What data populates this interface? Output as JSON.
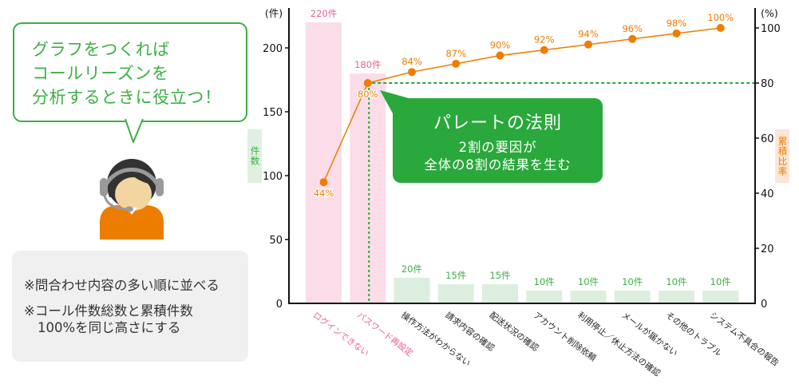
{
  "bubble": {
    "lines": [
      "グラフをつくれば",
      "コールリーズンを",
      "分析するときに役立つ！"
    ]
  },
  "note": {
    "line1": "※問合わせ内容の多い順に並べる",
    "line2": "※コール件数総数と累積件数",
    "line3": "100%を同じ高さにする"
  },
  "callout": {
    "title": "パレートの法則",
    "line1": "2割の要因が",
    "line2": "全体の8割の結果を生む"
  },
  "colors": {
    "green": "#3cb043",
    "callout_green": "#2aa83c",
    "orange": "#ee7d00",
    "pink_text": "#e8609a",
    "pink_bar": "#fbdde9",
    "green_bar": "#dcefdf",
    "axis": "#111111",
    "label_dark": "#222222"
  },
  "chart_data": {
    "type": "bar",
    "subtype": "pareto",
    "title": "",
    "categories": [
      "ログインできない",
      "パスワード再設定",
      "操作方法がわからない",
      "請求内容の確認",
      "配送状況の確認",
      "アカウント削除依頼",
      "利用停止／休止方法の確認",
      "メールが届かない",
      "その他のトラブル",
      "システム不具合の報告"
    ],
    "highlighted_categories": [
      0,
      1
    ],
    "series": [
      {
        "name": "件数",
        "type": "bar",
        "axis": "left",
        "values": [
          220,
          180,
          20,
          15,
          15,
          10,
          10,
          10,
          10,
          10
        ],
        "value_labels": [
          "220件",
          "180件",
          "20件",
          "15件",
          "15件",
          "10件",
          "10件",
          "10件",
          "10件",
          "10件"
        ]
      },
      {
        "name": "累積比率",
        "type": "line",
        "axis": "right",
        "values": [
          44,
          80,
          84,
          87,
          90,
          92,
          94,
          96,
          98,
          100
        ],
        "value_labels": [
          "44%",
          "80%",
          "84%",
          "87%",
          "90%",
          "92%",
          "94%",
          "96%",
          "98%",
          "100%"
        ]
      }
    ],
    "xlabel": "",
    "ylabel": "件数",
    "y_unit": "(件)",
    "yticks": [
      0,
      50,
      100,
      150,
      200
    ],
    "ylim": [
      0,
      230
    ],
    "y2label": "累積比率",
    "y2_unit": "(%)",
    "y2ticks": [
      0,
      20,
      40,
      60,
      80,
      100
    ],
    "y2lim": [
      0,
      107
    ],
    "reference_line": {
      "axis": "right",
      "value": 80,
      "style": "dotted",
      "color": "#2aa83c"
    },
    "grid": false,
    "legend": "none"
  }
}
